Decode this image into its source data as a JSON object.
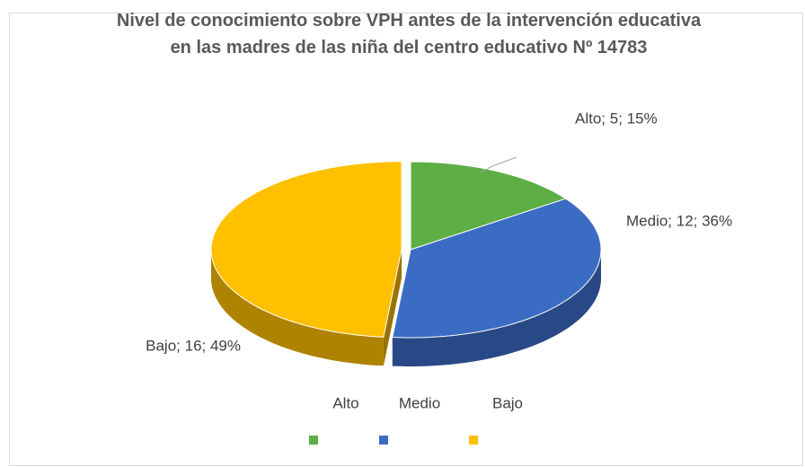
{
  "chart_data": {
    "type": "pie",
    "title": "Nivel de conocimiento sobre VPH antes de la intervención educativa en las madres de las niña del centro educativo Nº 14783",
    "categories": [
      "Alto",
      "Medio",
      "Bajo"
    ],
    "values": [
      5,
      12,
      16
    ],
    "value_labels": [
      "Alto; 5; 15%",
      "Medio; 12; 36%",
      "Bajo; 16; 49%"
    ],
    "colors": [
      "#5cae45",
      "#3b6cc4",
      "#ffc000"
    ],
    "legend": "bottom"
  }
}
